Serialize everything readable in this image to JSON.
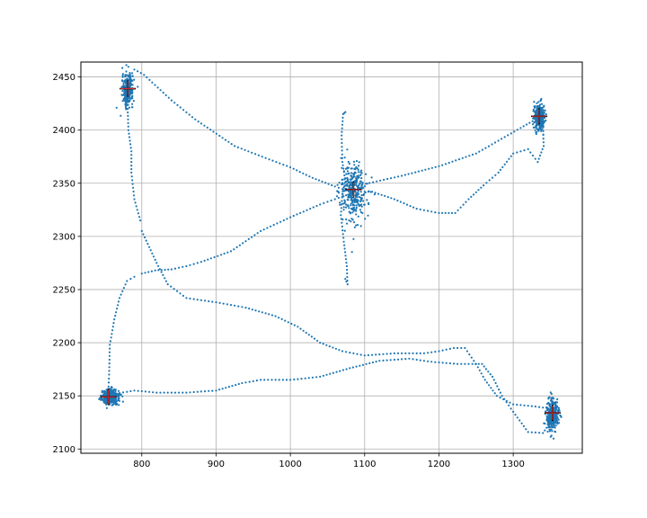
{
  "chart_data": {
    "type": "scatter",
    "title": "",
    "xlabel": "",
    "ylabel": "",
    "xlim": [
      718,
      1393
    ],
    "ylim": [
      2096,
      2464
    ],
    "grid": true,
    "x_ticks": [
      800,
      900,
      1000,
      1100,
      1200,
      1300
    ],
    "y_ticks": [
      2100,
      2150,
      2200,
      2250,
      2300,
      2350,
      2400,
      2450
    ],
    "x_tick_labels": [
      "800",
      "900",
      "1000",
      "1100",
      "1200",
      "1300"
    ],
    "y_tick_labels": [
      "2100",
      "2150",
      "2200",
      "2250",
      "2300",
      "2350",
      "2400",
      "2450"
    ],
    "trajectory_color": "#1f77b4",
    "marker_color": "#d62728",
    "marker_outline_color": "#000000",
    "clusters": [
      {
        "x": 781,
        "y": 2438,
        "sx": 3.5,
        "sy": 7
      },
      {
        "x": 1085,
        "y": 2342,
        "sx": 9,
        "sy": 14
      },
      {
        "x": 1335,
        "y": 2412,
        "sx": 3.5,
        "sy": 6
      },
      {
        "x": 1353,
        "y": 2132,
        "sx": 4,
        "sy": 7
      },
      {
        "x": 758,
        "y": 2149,
        "sx": 6,
        "sy": 3.5
      }
    ],
    "markers": [
      {
        "x": 781,
        "y": 2439
      },
      {
        "x": 1085,
        "y": 2344
      },
      {
        "x": 1335,
        "y": 2413
      },
      {
        "x": 1353,
        "y": 2134
      },
      {
        "x": 755,
        "y": 2149
      }
    ],
    "paths": [
      [
        [
          790,
          2457
        ],
        [
          803,
          2452
        ],
        [
          840,
          2428
        ],
        [
          872,
          2410
        ],
        [
          925,
          2385
        ],
        [
          962,
          2375
        ],
        [
          1000,
          2365
        ],
        [
          1030,
          2355
        ],
        [
          1060,
          2347
        ],
        [
          1080,
          2342
        ]
      ],
      [
        [
          1092,
          2348
        ],
        [
          1150,
          2357
        ],
        [
          1200,
          2366
        ],
        [
          1250,
          2378
        ],
        [
          1280,
          2390
        ],
        [
          1310,
          2402
        ],
        [
          1330,
          2410
        ]
      ],
      [
        [
          1340,
          2406
        ],
        [
          1341,
          2385
        ],
        [
          1333,
          2370
        ],
        [
          1320,
          2382
        ],
        [
          1300,
          2378
        ],
        [
          1280,
          2360
        ],
        [
          1260,
          2348
        ],
        [
          1240,
          2335
        ],
        [
          1222,
          2322
        ],
        [
          1200,
          2322
        ],
        [
          1170,
          2326
        ],
        [
          1140,
          2335
        ],
        [
          1110,
          2342
        ],
        [
          1095,
          2342
        ]
      ],
      [
        [
          1080,
          2340
        ],
        [
          1060,
          2335
        ],
        [
          1040,
          2330
        ],
        [
          1000,
          2318
        ],
        [
          960,
          2305
        ],
        [
          920,
          2286
        ],
        [
          880,
          2276
        ],
        [
          860,
          2272
        ],
        [
          840,
          2269
        ],
        [
          818,
          2268
        ],
        [
          800,
          2265
        ]
      ],
      [
        [
          790,
          2262
        ],
        [
          780,
          2258
        ],
        [
          770,
          2242
        ],
        [
          763,
          2222
        ],
        [
          757,
          2198
        ],
        [
          756,
          2170
        ],
        [
          755,
          2155
        ]
      ],
      [
        [
          765,
          2152
        ],
        [
          790,
          2155
        ],
        [
          820,
          2153
        ],
        [
          860,
          2153
        ],
        [
          900,
          2155
        ],
        [
          935,
          2162
        ],
        [
          960,
          2165
        ],
        [
          1000,
          2165
        ],
        [
          1040,
          2168
        ],
        [
          1080,
          2176
        ],
        [
          1120,
          2183
        ],
        [
          1160,
          2185
        ],
        [
          1190,
          2182
        ],
        [
          1225,
          2180
        ],
        [
          1245,
          2180
        ],
        [
          1258,
          2180
        ],
        [
          1272,
          2168
        ],
        [
          1285,
          2150
        ],
        [
          1300,
          2135
        ],
        [
          1320,
          2116
        ],
        [
          1340,
          2115
        ],
        [
          1350,
          2125
        ]
      ],
      [
        [
          1350,
          2138
        ],
        [
          1330,
          2140
        ],
        [
          1300,
          2142
        ],
        [
          1278,
          2150
        ],
        [
          1262,
          2165
        ],
        [
          1250,
          2180
        ],
        [
          1235,
          2195
        ],
        [
          1220,
          2195
        ],
        [
          1200,
          2192
        ],
        [
          1180,
          2190
        ],
        [
          1140,
          2190
        ],
        [
          1100,
          2188
        ],
        [
          1070,
          2192
        ],
        [
          1040,
          2200
        ],
        [
          1010,
          2215
        ],
        [
          980,
          2225
        ],
        [
          940,
          2233
        ],
        [
          900,
          2238
        ],
        [
          860,
          2242
        ],
        [
          835,
          2255
        ],
        [
          820,
          2275
        ],
        [
          810,
          2290
        ],
        [
          800,
          2305
        ]
      ],
      [
        [
          798,
          2315
        ],
        [
          790,
          2335
        ],
        [
          786,
          2360
        ],
        [
          786,
          2380
        ],
        [
          782,
          2400
        ],
        [
          781,
          2420
        ],
        [
          781,
          2435
        ]
      ],
      [
        [
          1070,
          2340
        ],
        [
          1068,
          2320
        ],
        [
          1072,
          2295
        ],
        [
          1076,
          2272
        ],
        [
          1077,
          2255
        ],
        [
          1074,
          2260
        ]
      ],
      [
        [
          1075,
          2348
        ],
        [
          1070,
          2370
        ],
        [
          1069,
          2395
        ],
        [
          1071,
          2415
        ],
        [
          1074,
          2417
        ]
      ]
    ]
  }
}
